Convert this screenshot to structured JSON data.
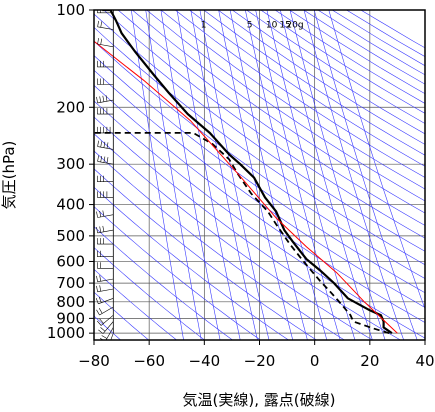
{
  "chart_data": {
    "type": "line",
    "title": "",
    "xlabel": "気温(実線), 露点(破線)",
    "ylabel": "気圧(hPa)",
    "xlim": [
      -80,
      40
    ],
    "ylim": [
      1050,
      100
    ],
    "y_scale": "log",
    "x_ticks": [
      -80,
      -60,
      -40,
      -20,
      0,
      20,
      40
    ],
    "x_tick_labels": [
      "−80",
      "−60",
      "−40",
      "−20",
      "0",
      "20",
      "40"
    ],
    "y_ticks": [
      100,
      200,
      300,
      400,
      500,
      600,
      700,
      800,
      900,
      1000
    ],
    "y_tick_labels": [
      "100",
      "200",
      "300",
      "400",
      "500",
      "600",
      "700",
      "800",
      "900",
      "1000"
    ],
    "grid": true,
    "mixing_ratio_labels": [
      "1",
      "5",
      "10",
      "15",
      "20g"
    ],
    "series": [
      {
        "style": "solid-black",
        "points": [
          [
            28,
            1000
          ],
          [
            25,
            960
          ],
          [
            25,
            920
          ],
          [
            24,
            880
          ],
          [
            20,
            850
          ],
          [
            12,
            780
          ],
          [
            7,
            700
          ],
          [
            2,
            640
          ],
          [
            -3,
            590
          ],
          [
            -8,
            520
          ],
          [
            -11,
            480
          ],
          [
            -14,
            420
          ],
          [
            -18,
            380
          ],
          [
            -22,
            330
          ],
          [
            -27,
            300
          ],
          [
            -31,
            280
          ],
          [
            -38,
            240
          ],
          [
            -46,
            210
          ],
          [
            -53,
            180
          ],
          [
            -58,
            160
          ],
          [
            -65,
            135
          ],
          [
            -70,
            118
          ],
          [
            -72,
            108
          ],
          [
            -74,
            100
          ],
          [
            -77,
            100
          ]
        ]
      },
      {
        "style": "dashed-black",
        "points": [
          [
            27,
            1000
          ],
          [
            21,
            965
          ],
          [
            14,
            920
          ],
          [
            13,
            880
          ],
          [
            10,
            820
          ],
          [
            6,
            750
          ],
          [
            2,
            690
          ],
          [
            -4,
            600
          ],
          [
            -9,
            530
          ],
          [
            -14,
            460
          ],
          [
            -17,
            420
          ],
          [
            -23,
            370
          ],
          [
            -28,
            320
          ],
          [
            -31,
            290
          ],
          [
            -37,
            260
          ],
          [
            -44,
            240
          ],
          [
            -80,
            240
          ]
        ]
      },
      {
        "style": "solid-red",
        "points": [
          [
            30,
            1000
          ],
          [
            18,
            800
          ],
          [
            8,
            650
          ],
          [
            -3,
            540
          ],
          [
            -14,
            440
          ],
          [
            -28,
            320
          ],
          [
            -45,
            220
          ],
          [
            -62,
            165
          ],
          [
            -80,
            125
          ]
        ]
      }
    ],
    "wind_profile": [
      {
        "p": 1000,
        "dir": 200,
        "speed": 10
      },
      {
        "p": 960,
        "dir": 210,
        "speed": 15
      },
      {
        "p": 920,
        "dir": 220,
        "speed": 15
      },
      {
        "p": 880,
        "dir": 230,
        "speed": 20
      },
      {
        "p": 830,
        "dir": 240,
        "speed": 15
      },
      {
        "p": 780,
        "dir": 250,
        "speed": 15
      },
      {
        "p": 730,
        "dir": 260,
        "speed": 20
      },
      {
        "p": 680,
        "dir": 260,
        "speed": 20
      },
      {
        "p": 630,
        "dir": 270,
        "speed": 15
      },
      {
        "p": 580,
        "dir": 270,
        "speed": 20
      },
      {
        "p": 530,
        "dir": 270,
        "speed": 25
      },
      {
        "p": 480,
        "dir": 260,
        "speed": 25
      },
      {
        "p": 430,
        "dir": 260,
        "speed": 30
      },
      {
        "p": 380,
        "dir": 270,
        "speed": 35
      },
      {
        "p": 340,
        "dir": 270,
        "speed": 30
      },
      {
        "p": 300,
        "dir": 280,
        "speed": 35
      },
      {
        "p": 270,
        "dir": 280,
        "speed": 40
      },
      {
        "p": 240,
        "dir": 270,
        "speed": 45
      },
      {
        "p": 210,
        "dir": 270,
        "speed": 40
      },
      {
        "p": 190,
        "dir": 260,
        "speed": 35
      },
      {
        "p": 170,
        "dir": 270,
        "speed": 30
      },
      {
        "p": 150,
        "dir": 270,
        "speed": 25
      },
      {
        "p": 130,
        "dir": 280,
        "speed": 20
      },
      {
        "p": 115,
        "dir": 280,
        "speed": 20
      },
      {
        "p": 102,
        "dir": 270,
        "speed": 15
      }
    ]
  }
}
